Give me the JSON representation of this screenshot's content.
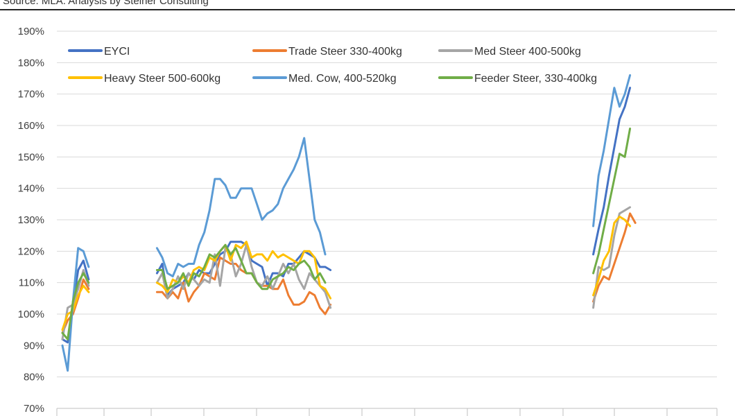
{
  "source_note": "Source: MLA.  Analysis by Steiner Consulting",
  "chart_data": {
    "type": "line",
    "title": "",
    "xlabel": "",
    "ylabel": "",
    "y_tick_labels": [
      "70%",
      "80%",
      "90%",
      "100%",
      "110%",
      "120%",
      "130%",
      "140%",
      "150%",
      "160%",
      "170%",
      "180%",
      "190%"
    ],
    "ylim": [
      70,
      190
    ],
    "grid": "horizontal",
    "legend_position": "top",
    "series": [
      {
        "name": "EYCI",
        "color": "#4472c4",
        "segments": [
          [
            92,
            91,
            103,
            114,
            117,
            111
          ],
          [
            113,
            116,
            106,
            108,
            109,
            110,
            113,
            111,
            114,
            113,
            113,
            116,
            119,
            120,
            123,
            123,
            123,
            122,
            117,
            116,
            115,
            109,
            113,
            113,
            112,
            116,
            116,
            118,
            120,
            119,
            118,
            115,
            115,
            114
          ],
          [
            119,
            127,
            134,
            144,
            153,
            162,
            166,
            172
          ]
        ]
      },
      {
        "name": "Trade Steer 330-400kg",
        "color": "#ed7d31",
        "segments": [
          [
            94,
            98,
            100,
            105,
            111,
            108
          ],
          [
            107,
            107,
            105,
            107,
            105,
            110,
            104,
            107,
            109,
            113,
            112,
            111,
            118,
            117,
            116,
            116,
            114,
            113,
            113,
            110,
            109,
            109,
            108,
            108,
            111,
            106,
            103,
            103,
            104,
            107,
            106,
            102,
            100,
            103
          ],
          [
            104,
            109,
            112,
            111,
            116,
            121,
            126,
            132,
            129
          ]
        ]
      },
      {
        "name": "Med Steer 400-500kg",
        "color": "#a5a5a5",
        "segments": [
          [
            92,
            102,
            103,
            108,
            114,
            109
          ],
          [
            110,
            113,
            105,
            108,
            112,
            108,
            113,
            111,
            109,
            111,
            110,
            119,
            109,
            121,
            119,
            112,
            116,
            122,
            115,
            110,
            109,
            112,
            108,
            112,
            116,
            113,
            116,
            111,
            108,
            113,
            111,
            109,
            107,
            102
          ],
          [
            102,
            115,
            114,
            115,
            125,
            132,
            133,
            134
          ]
        ]
      },
      {
        "name": "Heavy Steer 500-600kg",
        "color": "#ffc000",
        "segments": [
          [
            95,
            100,
            101,
            106,
            109,
            107
          ],
          [
            110,
            109,
            107,
            111,
            110,
            112,
            110,
            114,
            115,
            114,
            118,
            117,
            120,
            122,
            117,
            122,
            121,
            123,
            118,
            119,
            119,
            117,
            120,
            118,
            119,
            118,
            117,
            116,
            120,
            120,
            118,
            109,
            108,
            105
          ],
          [
            106,
            111,
            117,
            120,
            129,
            131,
            130,
            128
          ]
        ]
      },
      {
        "name": "Med. Cow, 400-520kg",
        "color": "#5b9bd5",
        "segments": [
          [
            90,
            82,
            104,
            121,
            120,
            115
          ],
          [
            121,
            118,
            113,
            112,
            116,
            115,
            116,
            116,
            122,
            126,
            133,
            143,
            143,
            141,
            137,
            137,
            140,
            140,
            140,
            135,
            130,
            132,
            133,
            135,
            140,
            143,
            146,
            150,
            156,
            143,
            130,
            126,
            119
          ],
          [
            128,
            144,
            152,
            162,
            172,
            166,
            170,
            176
          ]
        ]
      },
      {
        "name": "Feeder Steer, 330-400kg",
        "color": "#70ad47",
        "segments": [
          [
            94,
            92,
            104,
            110,
            113,
            110
          ],
          [
            114,
            114,
            108,
            109,
            110,
            113,
            109,
            113,
            112,
            115,
            119,
            118,
            120,
            122,
            119,
            121,
            117,
            113,
            113,
            110,
            108,
            108,
            111,
            112,
            113,
            115,
            114,
            116,
            117,
            115,
            111,
            113,
            110
          ],
          [
            113,
            119,
            127,
            135,
            143,
            151,
            150,
            159
          ]
        ]
      }
    ]
  }
}
